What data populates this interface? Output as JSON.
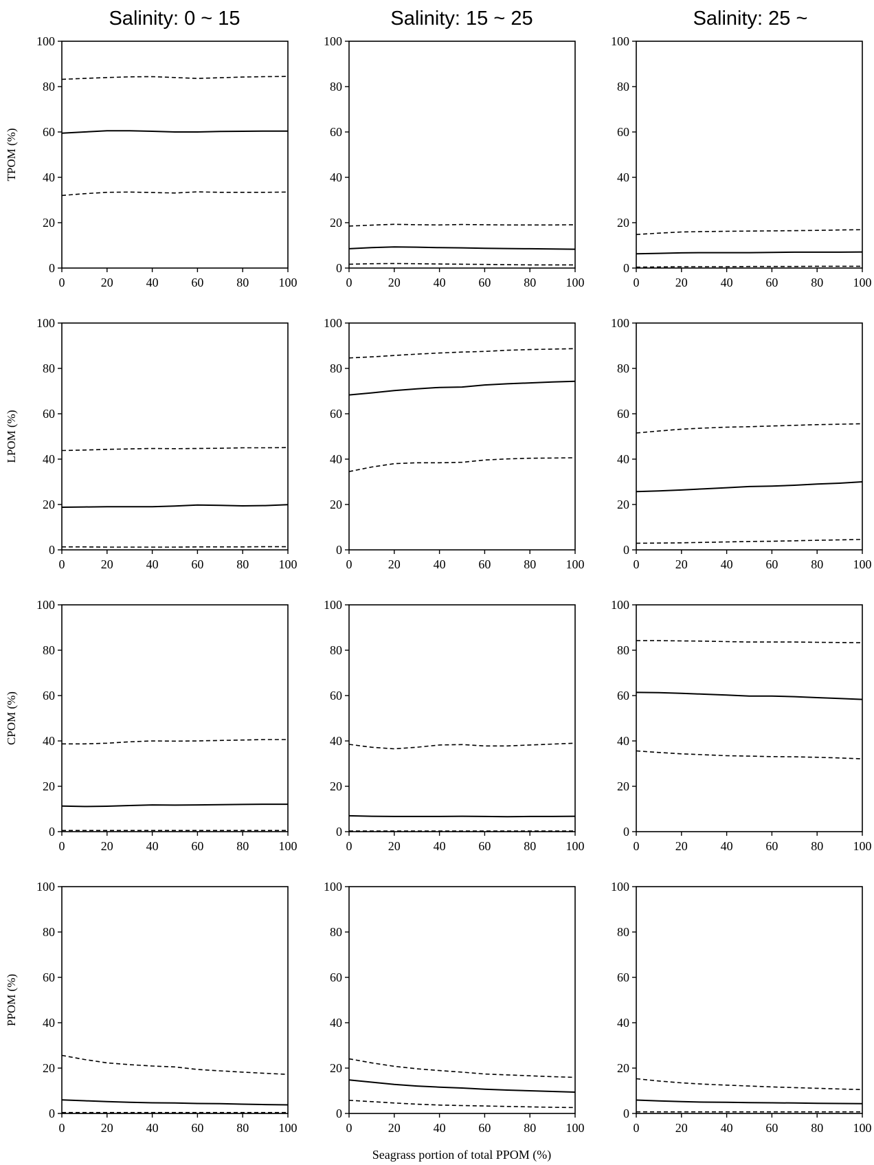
{
  "column_titles": [
    "Salinity: 0 ~ 15",
    "Salinity: 15 ~ 25",
    "Salinity: 25 ~"
  ],
  "row_ylabels": [
    "TPOM (%)",
    "LPOM (%)",
    "CPOM (%)",
    "PPOM (%)"
  ],
  "xlabel": "Seagrass portion of total PPOM (%)",
  "x_ticks": [
    "0",
    "20",
    "40",
    "60",
    "80",
    "100"
  ],
  "y_ticks": [
    "0",
    "20",
    "40",
    "60",
    "80",
    "100"
  ],
  "chart_data": [
    {
      "type": "line",
      "row": 0,
      "col": 0,
      "ylabel": "TPOM (%)",
      "title": "Salinity: 0 ~ 15",
      "xlim": [
        0,
        100
      ],
      "ylim": [
        0,
        100
      ],
      "grid": false,
      "x": [
        0,
        10,
        20,
        30,
        40,
        50,
        60,
        70,
        80,
        90,
        100
      ],
      "series": [
        {
          "style": "solid",
          "values": [
            59.5,
            60,
            60.5,
            60.5,
            60.3,
            60,
            60,
            60.2,
            60.3,
            60.4,
            60.4
          ]
        },
        {
          "style": "dashed",
          "values": [
            83.2,
            83.6,
            84,
            84.3,
            84.4,
            84,
            83.6,
            83.9,
            84.2,
            84.4,
            84.5
          ]
        },
        {
          "style": "dashed",
          "values": [
            32,
            32.8,
            33.4,
            33.5,
            33.3,
            33.1,
            33.6,
            33.4,
            33.4,
            33.4,
            33.5
          ]
        }
      ]
    },
    {
      "type": "line",
      "row": 0,
      "col": 1,
      "ylabel": "TPOM (%)",
      "title": "Salinity: 15 ~ 25",
      "xlim": [
        0,
        100
      ],
      "ylim": [
        0,
        100
      ],
      "grid": false,
      "x": [
        0,
        10,
        20,
        30,
        40,
        50,
        60,
        70,
        80,
        90,
        100
      ],
      "series": [
        {
          "style": "solid",
          "values": [
            8.5,
            9,
            9.3,
            9.2,
            9,
            8.9,
            8.7,
            8.6,
            8.5,
            8.4,
            8.3
          ]
        },
        {
          "style": "dashed",
          "values": [
            18.5,
            18.9,
            19.3,
            19.1,
            19,
            19.2,
            19.1,
            19,
            19,
            19,
            19.1
          ]
        },
        {
          "style": "dashed",
          "values": [
            1.7,
            1.9,
            2,
            1.9,
            1.8,
            1.7,
            1.6,
            1.5,
            1.4,
            1.4,
            1.4
          ]
        }
      ]
    },
    {
      "type": "line",
      "row": 0,
      "col": 2,
      "ylabel": "TPOM (%)",
      "title": "Salinity: 25 ~",
      "xlim": [
        0,
        100
      ],
      "ylim": [
        0,
        100
      ],
      "grid": false,
      "x": [
        0,
        10,
        20,
        30,
        40,
        50,
        60,
        70,
        80,
        90,
        100
      ],
      "series": [
        {
          "style": "solid",
          "values": [
            6.3,
            6.5,
            6.7,
            6.8,
            6.8,
            6.8,
            6.9,
            7,
            7,
            7,
            7.1
          ]
        },
        {
          "style": "dashed",
          "values": [
            14.8,
            15.4,
            15.9,
            16.1,
            16.2,
            16.3,
            16.4,
            16.5,
            16.6,
            16.8,
            16.9
          ]
        },
        {
          "style": "dashed",
          "values": [
            0.4,
            0.5,
            0.6,
            0.6,
            0.6,
            0.7,
            0.7,
            0.7,
            0.8,
            0.8,
            0.8
          ]
        }
      ]
    },
    {
      "type": "line",
      "row": 1,
      "col": 0,
      "ylabel": "LPOM (%)",
      "title": "",
      "xlim": [
        0,
        100
      ],
      "ylim": [
        0,
        100
      ],
      "grid": false,
      "x": [
        0,
        10,
        20,
        30,
        40,
        50,
        60,
        70,
        80,
        90,
        100
      ],
      "series": [
        {
          "style": "solid",
          "values": [
            18.8,
            18.9,
            19,
            19,
            19,
            19.3,
            19.8,
            19.6,
            19.4,
            19.5,
            19.9
          ]
        },
        {
          "style": "dashed",
          "values": [
            43.8,
            44,
            44.3,
            44.5,
            44.7,
            44.6,
            44.7,
            44.8,
            45,
            45,
            45.1
          ]
        },
        {
          "style": "dashed",
          "values": [
            1.3,
            1.3,
            1.2,
            1.2,
            1.2,
            1.2,
            1.3,
            1.3,
            1.3,
            1.4,
            1.4
          ]
        }
      ]
    },
    {
      "type": "line",
      "row": 1,
      "col": 1,
      "ylabel": "LPOM (%)",
      "title": "",
      "xlim": [
        0,
        100
      ],
      "ylim": [
        0,
        100
      ],
      "grid": false,
      "x": [
        0,
        10,
        20,
        30,
        40,
        50,
        60,
        70,
        80,
        90,
        100
      ],
      "series": [
        {
          "style": "solid",
          "values": [
            68.3,
            69.2,
            70.2,
            71,
            71.6,
            71.8,
            72.7,
            73.2,
            73.6,
            74,
            74.3
          ]
        },
        {
          "style": "dashed",
          "values": [
            84.6,
            85.1,
            85.7,
            86.3,
            86.8,
            87.2,
            87.5,
            88,
            88.3,
            88.5,
            88.7
          ]
        },
        {
          "style": "dashed",
          "values": [
            34.5,
            36.5,
            38,
            38.4,
            38.4,
            38.6,
            39.6,
            40.1,
            40.4,
            40.5,
            40.6
          ]
        }
      ]
    },
    {
      "type": "line",
      "row": 1,
      "col": 2,
      "ylabel": "LPOM (%)",
      "title": "",
      "xlim": [
        0,
        100
      ],
      "ylim": [
        0,
        100
      ],
      "grid": false,
      "x": [
        0,
        10,
        20,
        30,
        40,
        50,
        60,
        70,
        80,
        90,
        100
      ],
      "series": [
        {
          "style": "solid",
          "values": [
            25.7,
            26,
            26.4,
            26.9,
            27.4,
            27.9,
            28.1,
            28.5,
            29,
            29.4,
            30
          ]
        },
        {
          "style": "dashed",
          "values": [
            51.5,
            52.4,
            53.2,
            53.7,
            54.1,
            54.3,
            54.6,
            54.9,
            55.2,
            55.4,
            55.6
          ]
        },
        {
          "style": "dashed",
          "values": [
            2.9,
            3,
            3.1,
            3.3,
            3.5,
            3.7,
            3.8,
            4,
            4.2,
            4.4,
            4.6
          ]
        }
      ]
    },
    {
      "type": "line",
      "row": 2,
      "col": 0,
      "ylabel": "CPOM (%)",
      "title": "",
      "xlim": [
        0,
        100
      ],
      "ylim": [
        0,
        100
      ],
      "grid": false,
      "x": [
        0,
        10,
        20,
        30,
        40,
        50,
        60,
        70,
        80,
        90,
        100
      ],
      "series": [
        {
          "style": "solid",
          "values": [
            11.3,
            11.1,
            11.2,
            11.5,
            11.8,
            11.7,
            11.8,
            11.9,
            12,
            12.1,
            12.1
          ]
        },
        {
          "style": "dashed",
          "values": [
            38.7,
            38.7,
            39,
            39.6,
            40,
            39.9,
            40,
            40.2,
            40.4,
            40.6,
            40.6
          ]
        },
        {
          "style": "dashed",
          "values": [
            0.5,
            0.5,
            0.5,
            0.5,
            0.5,
            0.5,
            0.5,
            0.5,
            0.5,
            0.5,
            0.5
          ]
        }
      ]
    },
    {
      "type": "line",
      "row": 2,
      "col": 1,
      "ylabel": "CPOM (%)",
      "title": "",
      "xlim": [
        0,
        100
      ],
      "ylim": [
        0,
        100
      ],
      "grid": false,
      "x": [
        0,
        10,
        20,
        30,
        40,
        50,
        60,
        70,
        80,
        90,
        100
      ],
      "series": [
        {
          "style": "solid",
          "values": [
            7,
            6.8,
            6.7,
            6.7,
            6.7,
            6.8,
            6.7,
            6.6,
            6.7,
            6.7,
            6.8
          ]
        },
        {
          "style": "dashed",
          "values": [
            38.5,
            37.2,
            36.5,
            37.2,
            38.2,
            38.4,
            37.8,
            37.8,
            38.2,
            38.6,
            39
          ]
        },
        {
          "style": "dashed",
          "values": [
            0.3,
            0.3,
            0.3,
            0.3,
            0.3,
            0.3,
            0.3,
            0.3,
            0.3,
            0.3,
            0.3
          ]
        }
      ]
    },
    {
      "type": "line",
      "row": 2,
      "col": 2,
      "ylabel": "CPOM (%)",
      "title": "",
      "xlim": [
        0,
        100
      ],
      "ylim": [
        0,
        100
      ],
      "grid": false,
      "x": [
        0,
        10,
        20,
        30,
        40,
        50,
        60,
        70,
        80,
        90,
        100
      ],
      "series": [
        {
          "style": "solid",
          "values": [
            61.4,
            61.3,
            61,
            60.6,
            60.2,
            59.8,
            59.8,
            59.5,
            59.1,
            58.7,
            58.3
          ]
        },
        {
          "style": "dashed",
          "values": [
            84.2,
            84.2,
            84.1,
            84,
            83.8,
            83.6,
            83.6,
            83.6,
            83.5,
            83.4,
            83.3
          ]
        },
        {
          "style": "dashed",
          "values": [
            35.6,
            34.9,
            34.3,
            33.9,
            33.5,
            33.3,
            33.1,
            33,
            32.8,
            32.5,
            32.1
          ]
        }
      ]
    },
    {
      "type": "line",
      "row": 3,
      "col": 0,
      "ylabel": "PPOM (%)",
      "title": "",
      "xlim": [
        0,
        100
      ],
      "ylim": [
        0,
        100
      ],
      "grid": false,
      "x": [
        0,
        10,
        20,
        30,
        40,
        50,
        60,
        70,
        80,
        90,
        100
      ],
      "series": [
        {
          "style": "solid",
          "values": [
            6,
            5.6,
            5.2,
            4.9,
            4.7,
            4.6,
            4.4,
            4.3,
            4.1,
            3.9,
            3.8
          ]
        },
        {
          "style": "dashed",
          "values": [
            25.6,
            23.8,
            22.3,
            21.5,
            20.9,
            20.5,
            19.4,
            18.8,
            18.2,
            17.7,
            17.2
          ]
        },
        {
          "style": "dashed",
          "values": [
            0.4,
            0.4,
            0.4,
            0.4,
            0.4,
            0.4,
            0.4,
            0.4,
            0.4,
            0.4,
            0.4
          ]
        }
      ]
    },
    {
      "type": "line",
      "row": 3,
      "col": 1,
      "ylabel": "PPOM (%)",
      "title": "",
      "xlim": [
        0,
        100
      ],
      "ylim": [
        0,
        100
      ],
      "grid": false,
      "x": [
        0,
        10,
        20,
        30,
        40,
        50,
        60,
        70,
        80,
        90,
        100
      ],
      "series": [
        {
          "style": "solid",
          "values": [
            14.8,
            13.8,
            12.8,
            12.1,
            11.6,
            11.2,
            10.7,
            10.3,
            10,
            9.7,
            9.4
          ]
        },
        {
          "style": "dashed",
          "values": [
            24.1,
            22.3,
            20.8,
            19.7,
            18.9,
            18.2,
            17.4,
            17,
            16.6,
            16.2,
            15.9
          ]
        },
        {
          "style": "dashed",
          "values": [
            5.8,
            5.2,
            4.6,
            4.1,
            3.7,
            3.5,
            3.3,
            3.1,
            2.9,
            2.7,
            2.6
          ]
        }
      ]
    },
    {
      "type": "line",
      "row": 3,
      "col": 2,
      "ylabel": "PPOM (%)",
      "title": "",
      "xlim": [
        0,
        100
      ],
      "ylim": [
        0,
        100
      ],
      "grid": false,
      "x": [
        0,
        10,
        20,
        30,
        40,
        50,
        60,
        70,
        80,
        90,
        100
      ],
      "series": [
        {
          "style": "solid",
          "values": [
            5.9,
            5.5,
            5.2,
            5,
            4.9,
            4.8,
            4.7,
            4.6,
            4.5,
            4.4,
            4.3
          ]
        },
        {
          "style": "dashed",
          "values": [
            15.3,
            14.3,
            13.5,
            12.9,
            12.5,
            12.1,
            11.7,
            11.4,
            11.1,
            10.8,
            10.5
          ]
        },
        {
          "style": "dashed",
          "values": [
            0.7,
            0.7,
            0.7,
            0.7,
            0.7,
            0.7,
            0.7,
            0.7,
            0.7,
            0.7,
            0.7
          ]
        }
      ]
    }
  ]
}
